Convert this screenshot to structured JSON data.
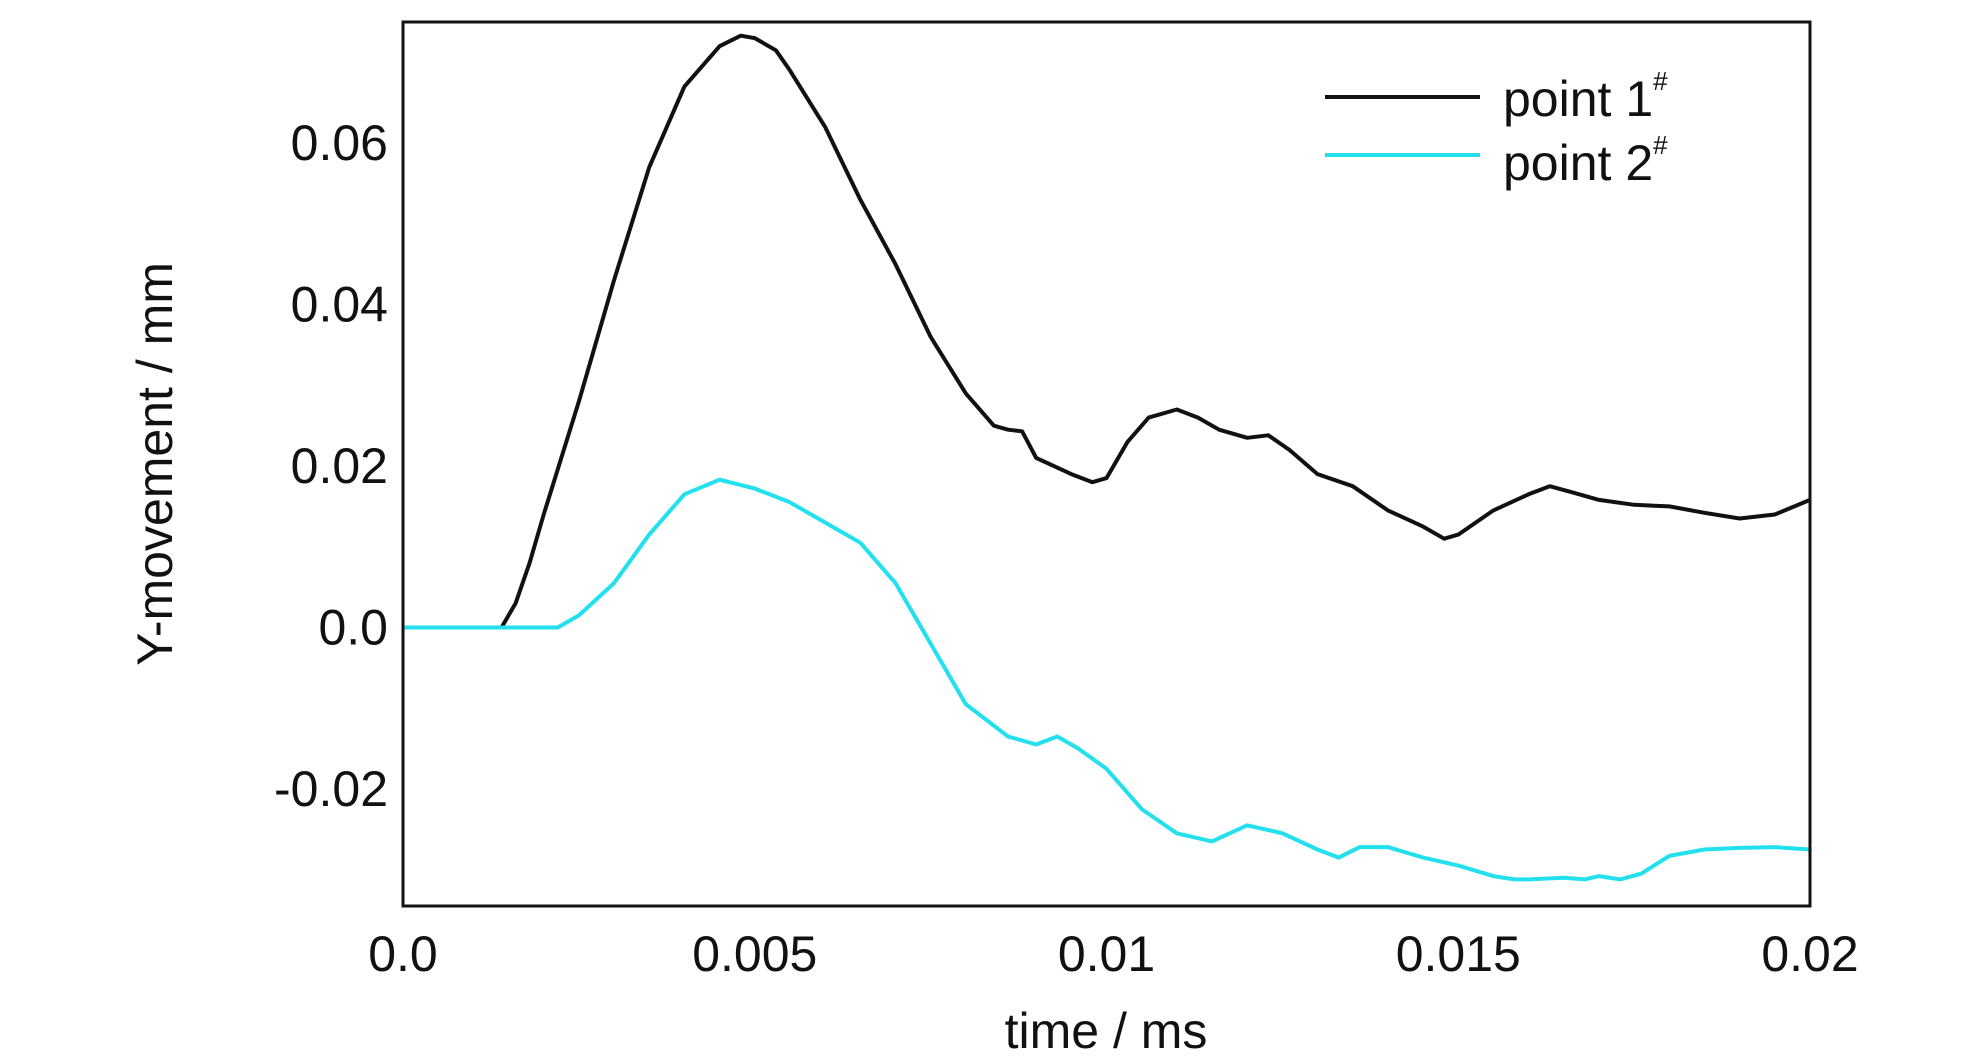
{
  "chart_data": {
    "type": "line",
    "title": "",
    "xlabel": "time / ms",
    "ylabel": "Y-movement / mm",
    "xlim": [
      0,
      0.02
    ],
    "ylim": [
      -0.0345,
      0.075
    ],
    "x_ticks": [
      0,
      0.005,
      0.01,
      0.015,
      0.02
    ],
    "x_tick_labels": [
      "0.0",
      "0.005",
      "0.01",
      "0.015",
      "0.02"
    ],
    "y_ticks": [
      -0.02,
      0,
      0.02,
      0.04,
      0.06
    ],
    "y_tick_labels": [
      "-0.02",
      "0.0",
      "0.02",
      "0.04",
      "0.06"
    ],
    "grid": false,
    "legend_position": "top-right",
    "series": [
      {
        "name": "point 1",
        "name_sup": "#",
        "color": "#111111",
        "x": [
          0,
          0.0005,
          0.001,
          0.0014,
          0.0016,
          0.0018,
          0.002,
          0.0025,
          0.003,
          0.0035,
          0.004,
          0.0045,
          0.0048,
          0.005,
          0.0053,
          0.0055,
          0.006,
          0.0065,
          0.007,
          0.0075,
          0.008,
          0.0084,
          0.0086,
          0.0088,
          0.009,
          0.0095,
          0.0098,
          0.01,
          0.0103,
          0.0106,
          0.011,
          0.0113,
          0.0116,
          0.012,
          0.0123,
          0.0126,
          0.013,
          0.0135,
          0.014,
          0.0145,
          0.0148,
          0.015,
          0.0155,
          0.016,
          0.0163,
          0.0166,
          0.017,
          0.0175,
          0.018,
          0.0185,
          0.019,
          0.0195,
          0.02
        ],
        "y": [
          0,
          0,
          0,
          0,
          0.003,
          0.008,
          0.014,
          0.028,
          0.043,
          0.057,
          0.067,
          0.072,
          0.0733,
          0.073,
          0.0715,
          0.069,
          0.062,
          0.053,
          0.045,
          0.036,
          0.029,
          0.025,
          0.0245,
          0.0243,
          0.021,
          0.019,
          0.018,
          0.0185,
          0.023,
          0.026,
          0.027,
          0.026,
          0.0245,
          0.0235,
          0.0238,
          0.022,
          0.019,
          0.0175,
          0.0145,
          0.0125,
          0.011,
          0.0115,
          0.0145,
          0.0165,
          0.0175,
          0.0168,
          0.0158,
          0.0152,
          0.015,
          0.0142,
          0.0135,
          0.014,
          0.0158
        ]
      },
      {
        "name": "point 2",
        "name_sup": "#",
        "color": "#22e0ee",
        "x": [
          0,
          0.001,
          0.0022,
          0.0025,
          0.003,
          0.0035,
          0.004,
          0.0045,
          0.005,
          0.0055,
          0.006,
          0.0065,
          0.007,
          0.0075,
          0.008,
          0.0083,
          0.0086,
          0.009,
          0.0093,
          0.0096,
          0.01,
          0.0105,
          0.011,
          0.0115,
          0.012,
          0.0125,
          0.013,
          0.0133,
          0.0136,
          0.014,
          0.0145,
          0.015,
          0.0155,
          0.0158,
          0.016,
          0.0165,
          0.0168,
          0.017,
          0.0173,
          0.0176,
          0.018,
          0.0185,
          0.019,
          0.0195,
          0.02
        ],
        "y": [
          0,
          0,
          0,
          0.0015,
          0.0055,
          0.0115,
          0.0165,
          0.0183,
          0.0172,
          0.0155,
          0.013,
          0.0105,
          0.0055,
          -0.002,
          -0.0095,
          -0.0115,
          -0.0135,
          -0.0145,
          -0.0135,
          -0.015,
          -0.0175,
          -0.0225,
          -0.0255,
          -0.0265,
          -0.0245,
          -0.0255,
          -0.0275,
          -0.0285,
          -0.0272,
          -0.0272,
          -0.0285,
          -0.0295,
          -0.0308,
          -0.0312,
          -0.0312,
          -0.031,
          -0.0312,
          -0.0308,
          -0.0312,
          -0.0305,
          -0.0283,
          -0.0275,
          -0.0273,
          -0.0272,
          -0.0275
        ]
      }
    ]
  }
}
